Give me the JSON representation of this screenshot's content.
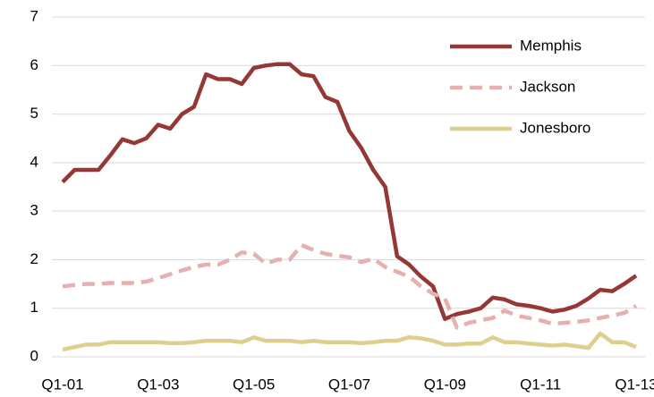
{
  "chart_data": {
    "type": "line",
    "categories": [
      "Q1-01",
      null,
      null,
      null,
      null,
      null,
      null,
      null,
      "Q1-03",
      null,
      null,
      null,
      null,
      null,
      null,
      null,
      "Q1-05",
      null,
      null,
      null,
      null,
      null,
      null,
      null,
      "Q1-07",
      null,
      null,
      null,
      null,
      null,
      null,
      null,
      "Q1-09",
      null,
      null,
      null,
      null,
      null,
      null,
      null,
      "Q1-11",
      null,
      null,
      null,
      null,
      null,
      null,
      null,
      "Q1-13"
    ],
    "series": [
      {
        "name": "Memphis",
        "color": "#953735",
        "style": "solid",
        "values": [
          3.6,
          3.85,
          3.85,
          3.85,
          4.15,
          4.48,
          4.4,
          4.5,
          4.78,
          4.7,
          5.0,
          5.15,
          5.82,
          5.72,
          5.72,
          5.62,
          5.95,
          6.0,
          6.03,
          6.03,
          5.82,
          5.78,
          5.35,
          5.25,
          4.65,
          4.3,
          3.85,
          3.5,
          2.07,
          1.9,
          1.65,
          1.45,
          0.78,
          0.88,
          0.93,
          1.0,
          1.22,
          1.18,
          1.08,
          1.05,
          1.0,
          0.93,
          0.97,
          1.05,
          1.2,
          1.38,
          1.35,
          1.5,
          1.67
        ]
      },
      {
        "name": "Jackson",
        "color": "#e6b0b0",
        "style": "dashed",
        "values": [
          1.45,
          1.48,
          1.5,
          1.5,
          1.52,
          1.52,
          1.52,
          1.55,
          1.62,
          1.7,
          1.78,
          1.85,
          1.9,
          1.9,
          2.0,
          2.15,
          2.12,
          1.92,
          2.0,
          2.0,
          2.3,
          2.2,
          2.12,
          2.08,
          2.05,
          1.95,
          2.02,
          1.85,
          1.75,
          1.65,
          1.45,
          1.3,
          1.2,
          0.6,
          0.7,
          0.75,
          0.8,
          0.95,
          0.85,
          0.8,
          0.75,
          0.68,
          0.7,
          0.72,
          0.75,
          0.8,
          0.85,
          0.9,
          1.05
        ]
      },
      {
        "name": "Jonesboro",
        "color": "#ddd08e",
        "style": "solid",
        "values": [
          0.15,
          0.2,
          0.25,
          0.25,
          0.3,
          0.3,
          0.3,
          0.3,
          0.3,
          0.28,
          0.28,
          0.3,
          0.33,
          0.33,
          0.33,
          0.3,
          0.4,
          0.33,
          0.33,
          0.33,
          0.3,
          0.33,
          0.3,
          0.3,
          0.3,
          0.28,
          0.3,
          0.33,
          0.33,
          0.4,
          0.38,
          0.33,
          0.25,
          0.25,
          0.27,
          0.27,
          0.4,
          0.3,
          0.3,
          0.27,
          0.25,
          0.23,
          0.25,
          0.22,
          0.18,
          0.48,
          0.3,
          0.3,
          0.2
        ]
      }
    ],
    "ylim": [
      0,
      7
    ],
    "yticks": [
      0,
      1,
      2,
      3,
      4,
      5,
      6,
      7
    ],
    "grid": true,
    "legend": "upper-right"
  }
}
